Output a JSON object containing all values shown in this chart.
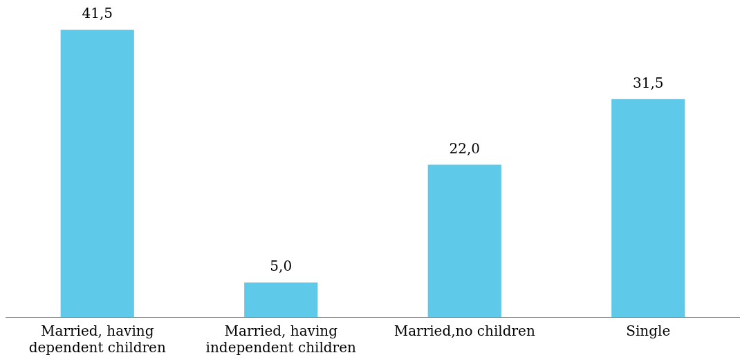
{
  "chart_data": {
    "type": "bar",
    "categories": [
      "Married, having dependent children",
      "Married, having independent children",
      "Married,no children",
      "Single"
    ],
    "values": [
      41.5,
      5.0,
      22.0,
      31.5
    ],
    "value_labels": [
      "41,5",
      "5,0",
      "22,0",
      "31,5"
    ],
    "color": "#5ec9e8",
    "grid": false,
    "legend": false
  }
}
